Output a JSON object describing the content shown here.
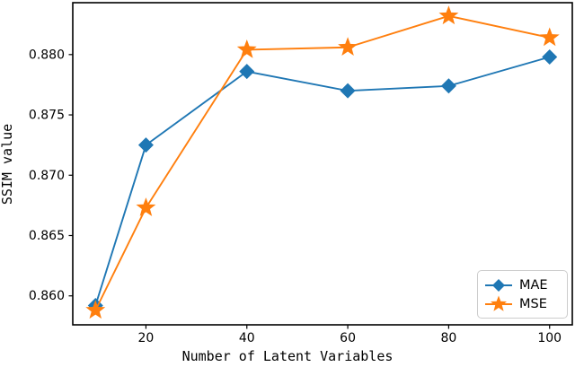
{
  "figure": {
    "background": "#ffffff",
    "spine_color": "#000000",
    "tick_label_color": "#000000"
  },
  "chart_data": {
    "type": "line",
    "title": "",
    "xlabel": "Number of Latent Variables",
    "ylabel": "SSIM value",
    "x": [
      10,
      20,
      40,
      60,
      80,
      100
    ],
    "series": [
      {
        "name": "MAE",
        "color": "#1f77b4",
        "marker": "diamond",
        "values": [
          0.8592,
          0.8725,
          0.8786,
          0.877,
          0.8774,
          0.8798
        ]
      },
      {
        "name": "MSE",
        "color": "#ff7f0e",
        "marker": "star",
        "values": [
          0.8588,
          0.8673,
          0.8804,
          0.8806,
          0.8832,
          0.8814
        ]
      }
    ],
    "xlim": [
      5.5,
      104.5
    ],
    "ylim": [
      0.8576,
      0.8843
    ],
    "xticks": [
      20,
      40,
      60,
      80,
      100
    ],
    "xtick_labels": [
      "20",
      "40",
      "60",
      "80",
      "100"
    ],
    "yticks": [
      0.86,
      0.865,
      0.87,
      0.875,
      0.88
    ],
    "ytick_labels": [
      "0.860",
      "0.865",
      "0.870",
      "0.875",
      "0.880"
    ],
    "grid": false,
    "legend_position": "lower right"
  }
}
